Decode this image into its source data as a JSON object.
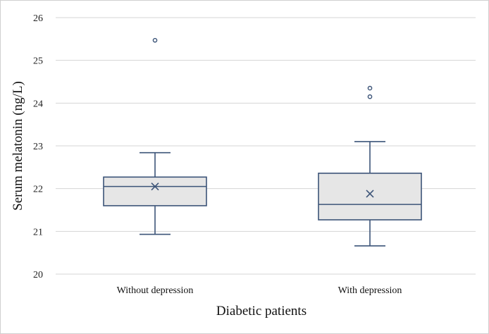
{
  "chart_data": {
    "type": "box",
    "title": "",
    "xlabel": "Diabetic patients",
    "ylabel": "Serum melatonin (ng/L)",
    "ylim": [
      20,
      26
    ],
    "yticks": [
      20,
      21,
      22,
      23,
      24,
      25,
      26
    ],
    "ytick_labels": [
      "20",
      "21",
      "22",
      "23",
      "24",
      "25",
      "26"
    ],
    "grid": true,
    "categories": [
      "Without depression",
      "With depression"
    ],
    "boxes": [
      {
        "name": "Without depression",
        "whisker_low": 20.93,
        "q1": 21.6,
        "median": 22.05,
        "mean": 22.05,
        "q3": 22.27,
        "whisker_high": 22.84,
        "outliers": [
          25.47
        ]
      },
      {
        "name": "With depression",
        "whisker_low": 20.66,
        "q1": 21.27,
        "median": 21.63,
        "mean": 21.88,
        "q3": 22.36,
        "whisker_high": 23.1,
        "outliers": [
          24.15,
          24.35
        ]
      }
    ],
    "colors": {
      "box_fill": "#e6e6e6",
      "box_stroke": "#3c5478",
      "grid": "#d4d4d4",
      "mean_marker": "#3c5478"
    }
  }
}
